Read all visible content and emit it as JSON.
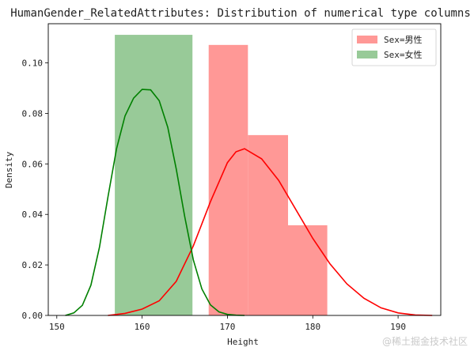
{
  "chart_data": {
    "type": "histogram_kde",
    "title": "HumanGender_RelatedAttributes: Distribution of numerical type columns",
    "xlabel": "Height",
    "ylabel": "Density",
    "xlim": [
      149,
      195
    ],
    "ylim": [
      0,
      0.1155
    ],
    "xticks": [
      150,
      160,
      170,
      180,
      190
    ],
    "xtick_labels": [
      "150",
      "160",
      "170",
      "180",
      "190"
    ],
    "yticks": [
      0.0,
      0.02,
      0.04,
      0.06,
      0.08,
      0.1
    ],
    "ytick_labels": [
      "0.00",
      "0.02",
      "0.04",
      "0.06",
      "0.08",
      "0.10"
    ],
    "legend_position": "top-right",
    "series": [
      {
        "name": "Sex=男性",
        "color": "#ff0000",
        "fill_color": "#ff9896",
        "bins": [
          {
            "x0": 167.8,
            "x1": 172.4,
            "density": 0.1071
          },
          {
            "x0": 172.4,
            "x1": 177.1,
            "density": 0.0714
          },
          {
            "x0": 177.1,
            "x1": 181.7,
            "density": 0.0357
          }
        ],
        "kde": {
          "x": [
            156,
            158,
            160,
            162,
            164,
            166,
            168,
            170,
            171,
            172,
            174,
            176,
            178,
            180,
            182,
            184,
            186,
            188,
            190,
            192,
            194
          ],
          "y": [
            0.0,
            0.0008,
            0.0025,
            0.0058,
            0.0135,
            0.0275,
            0.045,
            0.0605,
            0.0648,
            0.066,
            0.062,
            0.0535,
            0.042,
            0.0305,
            0.0205,
            0.0125,
            0.0068,
            0.003,
            0.001,
            0.0002,
            0.0
          ]
        }
      },
      {
        "name": "Sex=女性",
        "color": "#008000",
        "fill_color": "#98ca98",
        "bins": [
          {
            "x0": 156.8,
            "x1": 165.9,
            "density": 0.1111
          }
        ],
        "kde": {
          "x": [
            151,
            152,
            153,
            154,
            155,
            156,
            157,
            158,
            159,
            160,
            161,
            162,
            163,
            164,
            165,
            166,
            167,
            168,
            169,
            170,
            171,
            172
          ],
          "y": [
            0.0,
            0.001,
            0.004,
            0.012,
            0.027,
            0.047,
            0.066,
            0.079,
            0.086,
            0.0895,
            0.0893,
            0.085,
            0.0745,
            0.058,
            0.039,
            0.022,
            0.0105,
            0.0042,
            0.0014,
            0.0004,
            0.0001,
            0.0
          ]
        }
      }
    ]
  },
  "watermark": "@稀土掘金技术社区"
}
